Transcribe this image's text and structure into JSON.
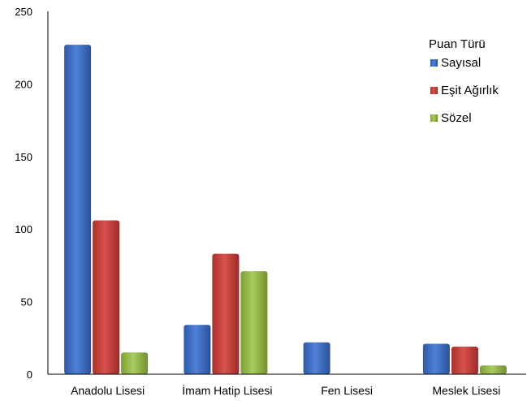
{
  "chart_data": {
    "type": "bar",
    "categories": [
      "Anadolu Lisesi",
      "İmam Hatip Lisesi",
      "Fen Lisesi",
      "Meslek Lisesi"
    ],
    "series": [
      {
        "name": "Sayısal",
        "values": [
          227,
          34,
          22,
          21
        ],
        "color": "#4472C4"
      },
      {
        "name": "Eşit Ağırlık",
        "values": [
          106,
          83,
          0,
          19
        ],
        "color": "#C0504D"
      },
      {
        "name": "Sözel",
        "values": [
          15,
          71,
          0,
          6
        ],
        "color": "#9BBB59"
      }
    ],
    "legend_title": "Puan Türü",
    "legend_position": "top-right",
    "y_ticks": [
      0,
      50,
      100,
      150,
      200,
      250
    ],
    "ylim": [
      0,
      250
    ],
    "grid": false,
    "title": "",
    "xlabel": "",
    "ylabel": ""
  }
}
